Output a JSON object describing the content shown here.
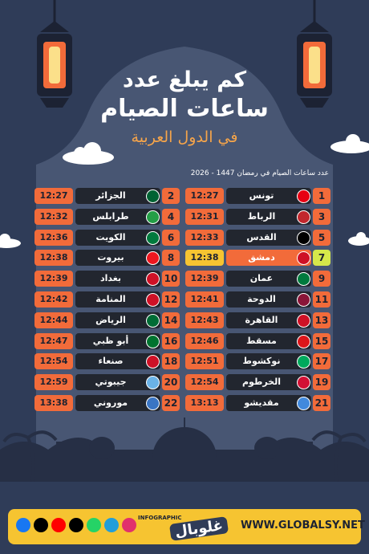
{
  "header": {
    "title": [
      "كم يبلغ عدد",
      "ساعات الصيام",
      "في الدول العربية"
    ],
    "subtitle": "عدد ساعات الصيام في رمضان 1447 - 2026"
  },
  "table": {
    "rows": [
      {
        "rank": 1,
        "city": "تونس",
        "time": "12:27"
      },
      {
        "rank": 2,
        "city": "الجزائر",
        "time": "12:27"
      },
      {
        "rank": 3,
        "city": "الرباط",
        "time": "12:31"
      },
      {
        "rank": 4,
        "city": "طرابلس",
        "time": "12:32"
      },
      {
        "rank": 5,
        "city": "القدس",
        "time": "12:33"
      },
      {
        "rank": 6,
        "city": "الكويت",
        "time": "12:36"
      },
      {
        "rank": 7,
        "city": "دمشق",
        "time": "12:38"
      },
      {
        "rank": 8,
        "city": "بيروت",
        "time": "12:38"
      },
      {
        "rank": 9,
        "city": "عمان",
        "time": "12:39"
      },
      {
        "rank": 10,
        "city": "بغداد",
        "time": "12:39"
      },
      {
        "rank": 11,
        "city": "الدوحة",
        "time": "12:41"
      },
      {
        "rank": 12,
        "city": "المنامة",
        "time": "12:42"
      },
      {
        "rank": 13,
        "city": "القاهرة",
        "time": "12:43"
      },
      {
        "rank": 14,
        "city": "الرياض",
        "time": "12:44"
      },
      {
        "rank": 15,
        "city": "مسقط",
        "time": "12:46"
      },
      {
        "rank": 16,
        "city": "أبو ظبي",
        "time": "12:47"
      },
      {
        "rank": 17,
        "city": "نوكشوط",
        "time": "12:51"
      },
      {
        "rank": 18,
        "city": "صنعاء",
        "time": "12:54"
      },
      {
        "rank": 19,
        "city": "الخرطوم",
        "time": "12:54"
      },
      {
        "rank": 20,
        "city": "جيبوتي",
        "time": "12:59"
      },
      {
        "rank": 21,
        "city": "مقديشو",
        "time": "13:13"
      },
      {
        "rank": 22,
        "city": "موروني",
        "time": "13:38"
      }
    ]
  },
  "footer": {
    "tag": "INFOGRAPHIC",
    "logo": "غلوبال",
    "url": "WWW.GLOBALSY.NET"
  }
}
